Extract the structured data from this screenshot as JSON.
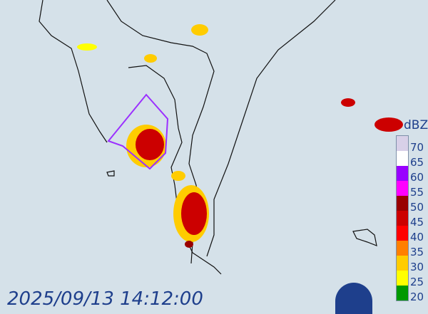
{
  "timestamp": "2025/09/13 14:12:00",
  "legend": {
    "unit": "dBZ",
    "labels": [
      "70",
      "65",
      "60",
      "55",
      "50",
      "45",
      "40",
      "35",
      "30",
      "25",
      "20"
    ],
    "colors": [
      "#d8d0e8",
      "#ffffff",
      "#9900ff",
      "#ff00ff",
      "#990000",
      "#cc0000",
      "#ff0000",
      "#ff7f00",
      "#ffcc00",
      "#ffff00",
      "#009900"
    ]
  },
  "warning_polygon_color": "#9b30ff",
  "logo": "CWA logo"
}
